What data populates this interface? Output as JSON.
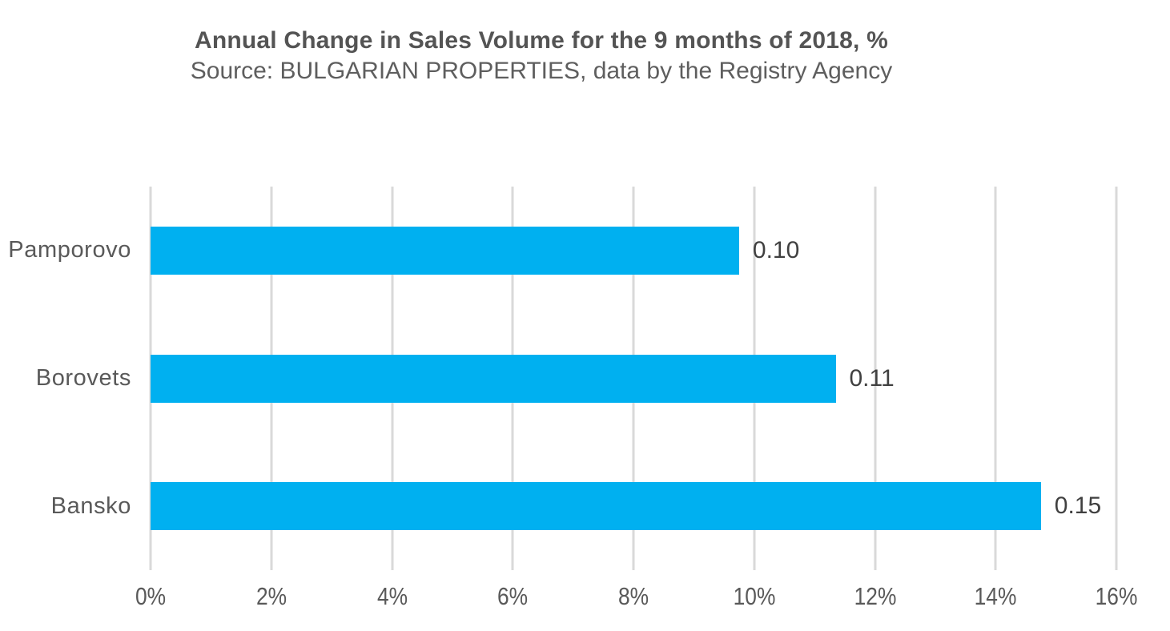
{
  "chart_data": {
    "type": "bar",
    "orientation": "horizontal",
    "title": "Annual Change in Sales Volume for the 9 months of 2018, %",
    "subtitle": "Source: BULGARIAN PROPERTIES, data by the Registry Agency",
    "categories": [
      "Pamporovo",
      "Borovets",
      "Bansko"
    ],
    "values_pct": [
      9.75,
      11.35,
      14.75
    ],
    "data_labels": [
      "0.10",
      "0.11",
      "0.15"
    ],
    "x_axis": {
      "min": 0,
      "max": 16,
      "step": 2,
      "unit": "%",
      "ticks": [
        "0%",
        "2%",
        "4%",
        "6%",
        "8%",
        "10%",
        "12%",
        "14%",
        "16%"
      ]
    },
    "grid": "vertical-gridlines",
    "legend": "none",
    "colors": {
      "bar": "#00B0F0",
      "gridline": "#D9D9D9",
      "title_text": "#545454",
      "subtitle_text": "#5E5E5E",
      "axis_text": "#595959",
      "data_label_text": "#404040",
      "background": "#FFFFFF"
    }
  }
}
